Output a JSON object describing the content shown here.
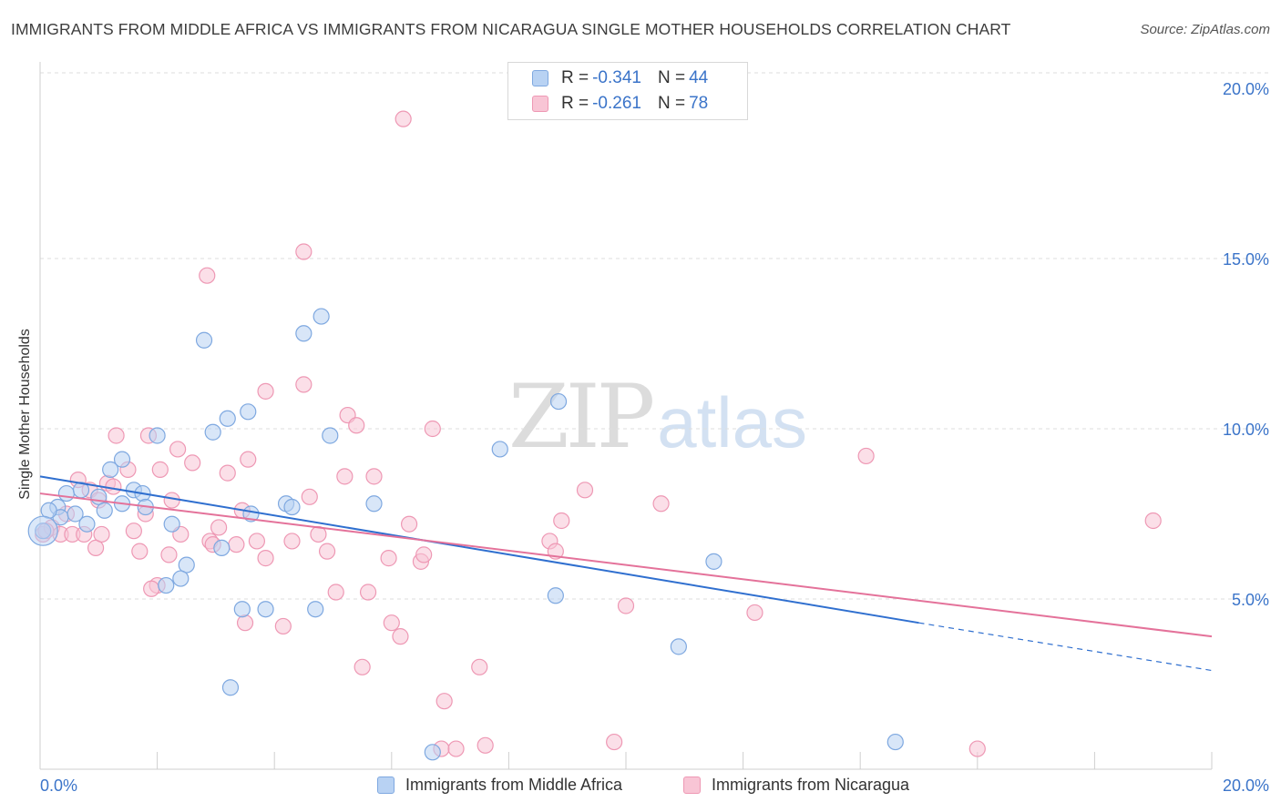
{
  "title": "IMMIGRANTS FROM MIDDLE AFRICA VS IMMIGRANTS FROM NICARAGUA SINGLE MOTHER HOUSEHOLDS CORRELATION CHART",
  "source": "Source: ZipAtlas.com",
  "watermark": {
    "zip": "ZIP",
    "atlas": "atlas"
  },
  "legend": {
    "rows": [
      {
        "r_label": "R = ",
        "r_value": "-0.341",
        "n_label": "N = ",
        "n_value": "44"
      },
      {
        "r_label": "R = ",
        "r_value": "-0.261",
        "n_label": "N = ",
        "n_value": "78"
      }
    ]
  },
  "colors": {
    "blue_fill": "#b8d2f3",
    "blue_stroke": "#7ea8e0",
    "blue_line": "#2f6fcf",
    "pink_fill": "#f8c5d5",
    "pink_stroke": "#ee98b4",
    "pink_line": "#e4729a",
    "axis_text": "#3b74c9",
    "grid": "#dedede"
  },
  "chart_data": {
    "type": "scatter",
    "title": "IMMIGRANTS FROM MIDDLE AFRICA VS IMMIGRANTS FROM NICARAGUA SINGLE MOTHER HOUSEHOLDS CORRELATION CHART",
    "xlabel": "",
    "ylabel": "Single Mother Households",
    "xlim": [
      0,
      20
    ],
    "ylim": [
      0,
      20
    ],
    "x_ticks": [
      "0.0%",
      "20.0%"
    ],
    "y_ticks": [
      {
        "value": 5,
        "label": "5.0%"
      },
      {
        "value": 10,
        "label": "10.0%"
      },
      {
        "value": 15,
        "label": "15.0%"
      },
      {
        "value": 20,
        "label": "20.0%"
      }
    ],
    "grid": true,
    "legend_position": "top-center",
    "series": [
      {
        "name": "Immigrants from Middle Africa",
        "r": -0.341,
        "n": 44,
        "trend": {
          "x0": 0,
          "y0": 8.6,
          "x1": 15,
          "y1": 4.3,
          "dashed_to_x": 20,
          "dashed_to_y": 2.9
        },
        "points": [
          [
            0.05,
            7.0
          ],
          [
            0.3,
            7.7
          ],
          [
            0.45,
            8.1
          ],
          [
            0.7,
            8.2
          ],
          [
            1.0,
            8.0
          ],
          [
            1.2,
            8.8
          ],
          [
            1.4,
            9.1
          ],
          [
            1.6,
            8.2
          ],
          [
            1.75,
            8.1
          ],
          [
            2.0,
            9.8
          ],
          [
            0.35,
            7.4
          ],
          [
            1.1,
            7.6
          ],
          [
            0.8,
            7.2
          ],
          [
            1.4,
            7.8
          ],
          [
            2.25,
            7.2
          ],
          [
            2.5,
            6.0
          ],
          [
            2.4,
            5.6
          ],
          [
            2.15,
            5.4
          ],
          [
            2.8,
            12.6
          ],
          [
            2.95,
            9.9
          ],
          [
            3.2,
            10.3
          ],
          [
            3.55,
            10.5
          ],
          [
            3.1,
            6.5
          ],
          [
            3.6,
            7.5
          ],
          [
            4.2,
            7.8
          ],
          [
            4.3,
            7.7
          ],
          [
            4.5,
            12.8
          ],
          [
            4.8,
            13.3
          ],
          [
            3.45,
            4.7
          ],
          [
            3.85,
            4.7
          ],
          [
            4.7,
            4.7
          ],
          [
            4.95,
            9.8
          ],
          [
            5.7,
            7.8
          ],
          [
            3.25,
            2.4
          ],
          [
            7.85,
            9.4
          ],
          [
            8.85,
            10.8
          ],
          [
            8.8,
            5.1
          ],
          [
            10.9,
            3.6
          ],
          [
            11.5,
            6.1
          ],
          [
            14.6,
            0.8
          ],
          [
            6.7,
            0.5
          ],
          [
            0.6,
            7.5
          ],
          [
            1.8,
            7.7
          ],
          [
            0.15,
            7.6
          ]
        ]
      },
      {
        "name": "Immigrants from Nicaragua",
        "r": -0.261,
        "n": 78,
        "trend": {
          "x0": 0,
          "y0": 8.1,
          "x1": 20,
          "y1": 3.9
        },
        "points": [
          [
            0.05,
            6.9
          ],
          [
            0.2,
            7.1
          ],
          [
            0.35,
            6.9
          ],
          [
            0.55,
            6.9
          ],
          [
            0.65,
            8.5
          ],
          [
            0.85,
            8.2
          ],
          [
            0.95,
            6.5
          ],
          [
            1.05,
            6.9
          ],
          [
            1.15,
            8.4
          ],
          [
            1.3,
            9.8
          ],
          [
            1.5,
            8.8
          ],
          [
            1.6,
            7.0
          ],
          [
            1.7,
            6.4
          ],
          [
            1.8,
            7.5
          ],
          [
            1.85,
            9.8
          ],
          [
            2.05,
            8.8
          ],
          [
            2.2,
            6.3
          ],
          [
            2.25,
            7.9
          ],
          [
            2.35,
            9.4
          ],
          [
            2.4,
            6.9
          ],
          [
            2.6,
            9.0
          ],
          [
            2.85,
            14.5
          ],
          [
            2.9,
            6.7
          ],
          [
            3.05,
            7.1
          ],
          [
            3.2,
            8.7
          ],
          [
            3.35,
            6.6
          ],
          [
            3.45,
            7.6
          ],
          [
            3.55,
            9.1
          ],
          [
            3.7,
            6.7
          ],
          [
            3.85,
            6.2
          ],
          [
            3.85,
            11.1
          ],
          [
            4.15,
            4.2
          ],
          [
            4.3,
            6.7
          ],
          [
            4.5,
            11.3
          ],
          [
            4.5,
            15.2
          ],
          [
            4.6,
            8.0
          ],
          [
            4.75,
            6.9
          ],
          [
            4.9,
            6.4
          ],
          [
            5.05,
            5.2
          ],
          [
            5.2,
            8.6
          ],
          [
            5.25,
            10.4
          ],
          [
            5.4,
            10.1
          ],
          [
            5.5,
            3.0
          ],
          [
            5.6,
            5.2
          ],
          [
            5.7,
            8.6
          ],
          [
            5.95,
            6.2
          ],
          [
            6.0,
            4.3
          ],
          [
            6.2,
            19.1
          ],
          [
            6.15,
            3.9
          ],
          [
            6.3,
            7.2
          ],
          [
            6.5,
            6.1
          ],
          [
            6.7,
            10.0
          ],
          [
            6.55,
            6.3
          ],
          [
            6.9,
            2.0
          ],
          [
            6.85,
            0.6
          ],
          [
            7.1,
            0.6
          ],
          [
            7.5,
            3.0
          ],
          [
            7.6,
            0.7
          ],
          [
            8.7,
            6.7
          ],
          [
            8.8,
            6.4
          ],
          [
            8.9,
            7.3
          ],
          [
            9.3,
            8.2
          ],
          [
            9.8,
            0.8
          ],
          [
            10.0,
            4.8
          ],
          [
            10.6,
            7.8
          ],
          [
            12.2,
            4.6
          ],
          [
            14.1,
            9.2
          ],
          [
            16.0,
            0.6
          ],
          [
            19.0,
            7.3
          ],
          [
            1.25,
            8.3
          ],
          [
            0.45,
            7.5
          ],
          [
            2.0,
            5.4
          ],
          [
            2.95,
            6.6
          ],
          [
            3.5,
            4.3
          ],
          [
            0.75,
            6.9
          ],
          [
            1.9,
            5.3
          ],
          [
            1.0,
            7.9
          ],
          [
            0.1,
            7.0
          ]
        ]
      }
    ]
  },
  "x_axis": {
    "left_label": "0.0%",
    "right_label": "20.0%"
  },
  "y_axis": {
    "label": "Single Mother Households"
  },
  "bottom_legend": [
    {
      "label": "Immigrants from Middle Africa"
    },
    {
      "label": "Immigrants from Nicaragua"
    }
  ]
}
